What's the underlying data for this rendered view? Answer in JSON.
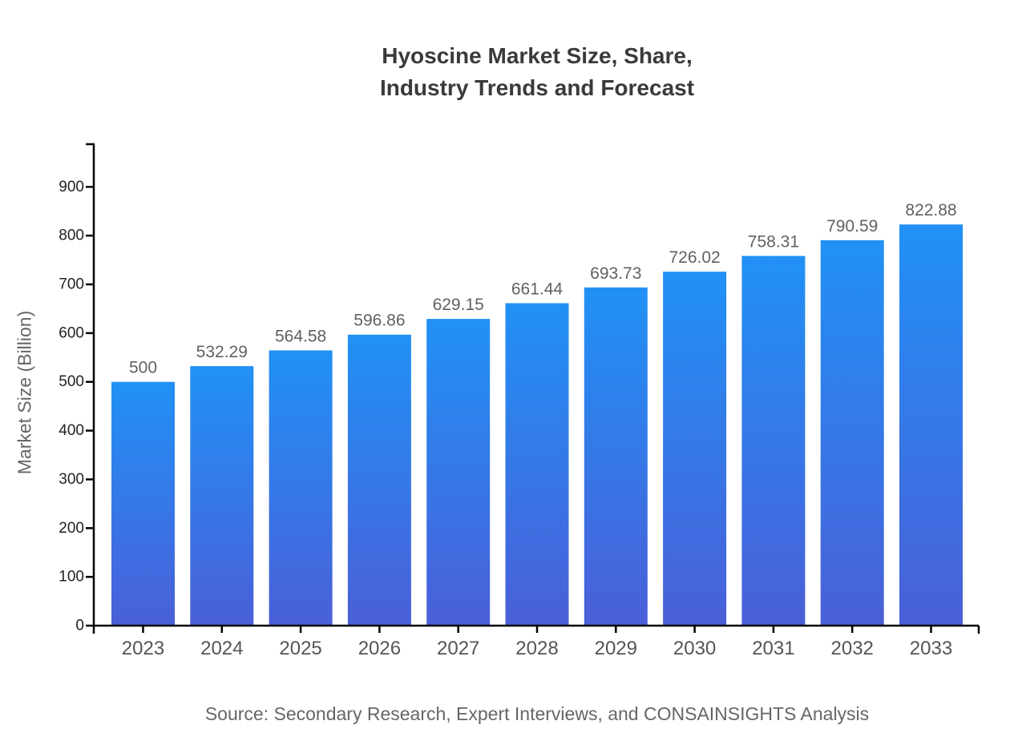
{
  "title": {
    "line1": "Hyoscine Market Size, Share,",
    "line2": "Industry Trends and Forecast"
  },
  "source_text": "Source: Secondary Research, Expert Interviews, and CONSAINSIGHTS Analysis",
  "chart_data": {
    "type": "bar",
    "title": "Hyoscine Market Size, Share, Industry Trends and Forecast",
    "categories": [
      "2023",
      "2024",
      "2025",
      "2026",
      "2027",
      "2028",
      "2029",
      "2030",
      "2031",
      "2032",
      "2033"
    ],
    "values": [
      500,
      532.29,
      564.58,
      596.86,
      629.15,
      661.44,
      693.73,
      726.02,
      758.31,
      790.59,
      822.88
    ],
    "value_labels": [
      "500",
      "532.29",
      "564.58",
      "596.86",
      "629.15",
      "661.44",
      "693.73",
      "726.02",
      "758.31",
      "790.59",
      "822.88"
    ],
    "xlabel": "",
    "ylabel": "Market Size (Billion)",
    "ylim": [
      0,
      987.5
    ],
    "yticks": [
      0,
      100,
      200,
      300,
      400,
      500,
      600,
      700,
      800,
      900
    ],
    "grid": false,
    "legend": false,
    "bar_gradient_top": "#2191f5",
    "bar_gradient_bottom": "#4a5fd8",
    "axis_color": "#000000",
    "y_tick_label_color": "#222222",
    "x_tick_label_color": "#555555",
    "value_label_color": "#616161",
    "title_color": "#3a3a3a",
    "ylabel_color": "#666666",
    "source_color": "#666666"
  }
}
